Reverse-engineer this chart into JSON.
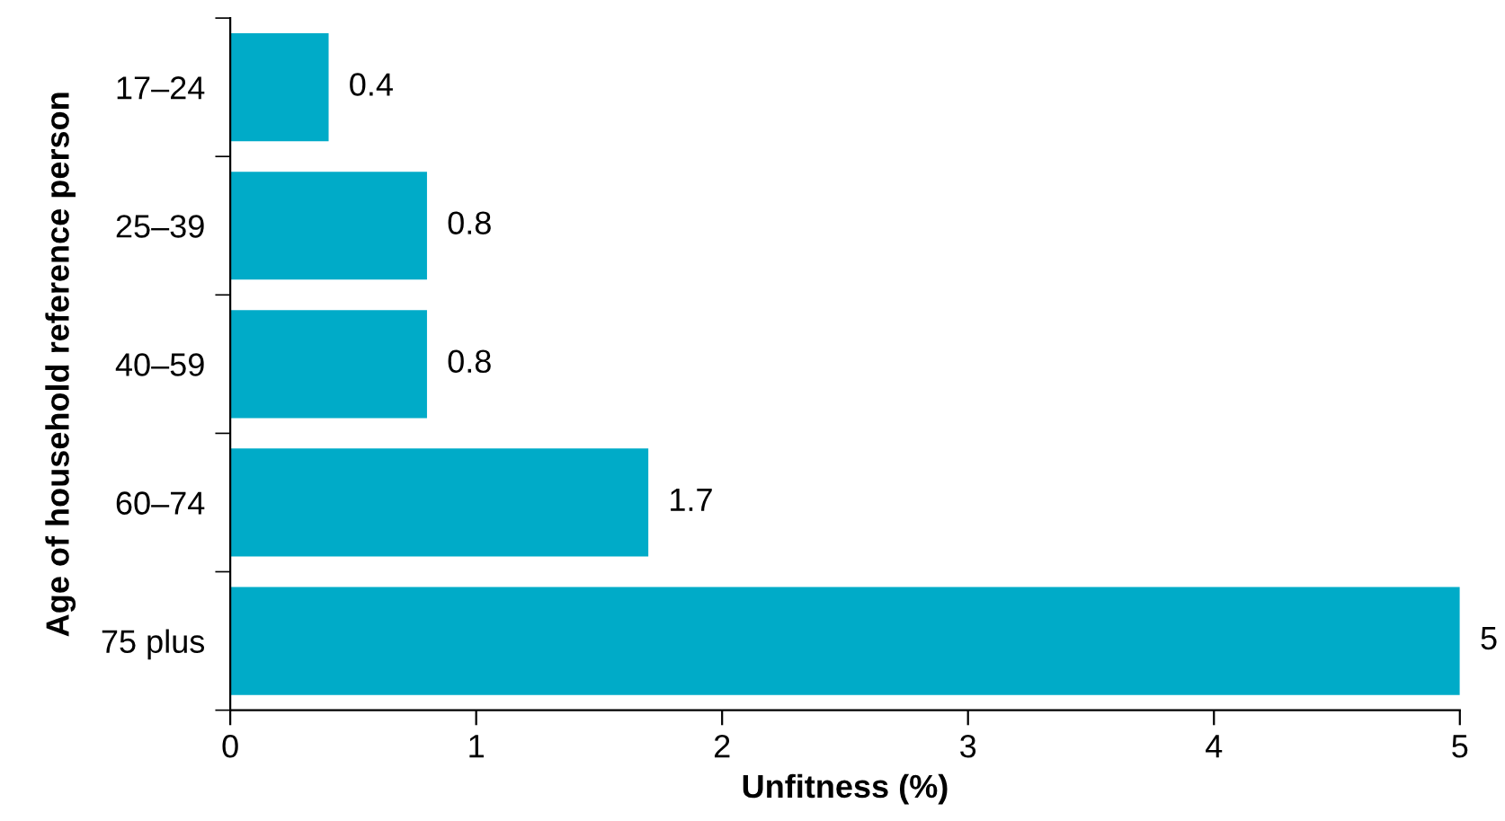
{
  "chart_data": {
    "type": "bar",
    "orientation": "horizontal",
    "xlabel": "Unfitness (%)",
    "ylabel": "Age of household reference person",
    "categories": [
      "17–24",
      "25–39",
      "40–59",
      "60–74",
      "75 plus"
    ],
    "values": [
      0.4,
      0.8,
      0.8,
      1.7,
      5
    ],
    "color": "#00abc8",
    "xlim": [
      0,
      5
    ],
    "xticks": [
      0,
      1,
      2,
      3,
      4,
      5
    ],
    "data_labels": true,
    "grid": false,
    "legend": false
  }
}
